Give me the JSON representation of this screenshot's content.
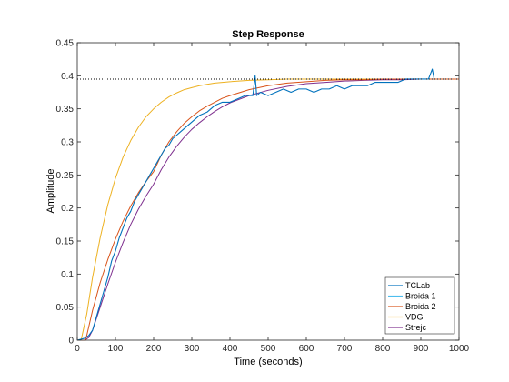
{
  "chart_data": {
    "type": "line",
    "title": "Step Response",
    "xlabel": "Time (seconds)",
    "ylabel": "Amplitude",
    "xlim": [
      0,
      1000
    ],
    "ylim": [
      0,
      0.45
    ],
    "xticks": [
      0,
      100,
      200,
      300,
      400,
      500,
      600,
      700,
      800,
      900,
      1000
    ],
    "xtick_labels": [
      "0",
      "100",
      "200",
      "300",
      "400",
      "500",
      "600",
      "700",
      "800",
      "900",
      "1000"
    ],
    "yticks": [
      0,
      0.05,
      0.1,
      0.15,
      0.2,
      0.25,
      0.3,
      0.35,
      0.4,
      0.45
    ],
    "ytick_labels": [
      "0",
      "0.05",
      "0.1",
      "0.15",
      "0.2",
      "0.25",
      "0.3",
      "0.35",
      "0.4",
      "0.45"
    ],
    "grid": false,
    "legend_position": "bottom-right",
    "reference_line": {
      "y": 0.395,
      "style": "dotted"
    },
    "series": [
      {
        "name": "TCLab",
        "color": "#0072BD",
        "x": [
          0,
          20,
          30,
          40,
          50,
          60,
          70,
          80,
          90,
          100,
          110,
          120,
          130,
          140,
          150,
          160,
          170,
          180,
          190,
          200,
          210,
          220,
          230,
          240,
          250,
          260,
          270,
          280,
          290,
          300,
          320,
          340,
          360,
          380,
          400,
          420,
          440,
          460,
          466,
          470,
          480,
          500,
          520,
          540,
          560,
          580,
          600,
          620,
          640,
          660,
          680,
          700,
          720,
          740,
          760,
          780,
          800,
          820,
          840,
          860,
          880,
          900,
          920,
          930,
          935
        ],
        "y": [
          0,
          0.003,
          0.007,
          0.015,
          0.035,
          0.055,
          0.075,
          0.095,
          0.12,
          0.135,
          0.155,
          0.17,
          0.185,
          0.195,
          0.21,
          0.22,
          0.23,
          0.24,
          0.25,
          0.26,
          0.27,
          0.28,
          0.29,
          0.295,
          0.305,
          0.31,
          0.315,
          0.32,
          0.325,
          0.33,
          0.34,
          0.345,
          0.355,
          0.36,
          0.36,
          0.365,
          0.37,
          0.37,
          0.4,
          0.37,
          0.375,
          0.37,
          0.375,
          0.38,
          0.375,
          0.38,
          0.38,
          0.375,
          0.38,
          0.38,
          0.385,
          0.38,
          0.385,
          0.385,
          0.385,
          0.39,
          0.39,
          0.39,
          0.39,
          0.395,
          0.395,
          0.395,
          0.395,
          0.41,
          0.395
        ]
      },
      {
        "name": "Broida 1",
        "color": "#4DBEEE",
        "x": [],
        "y": []
      },
      {
        "name": "Broida 2",
        "color": "#D95319",
        "x": [
          0,
          22,
          40,
          60,
          80,
          100,
          120,
          140,
          160,
          180,
          200,
          220,
          240,
          260,
          280,
          300,
          320,
          340,
          360,
          380,
          400,
          450,
          500,
          550,
          600,
          650,
          700,
          750,
          800,
          850,
          900,
          950,
          1000
        ],
        "y": [
          0,
          0,
          0.045,
          0.087,
          0.122,
          0.153,
          0.18,
          0.203,
          0.223,
          0.24,
          0.255,
          0.28,
          0.3,
          0.315,
          0.328,
          0.338,
          0.347,
          0.354,
          0.36,
          0.366,
          0.37,
          0.379,
          0.385,
          0.389,
          0.391,
          0.393,
          0.394,
          0.394,
          0.395,
          0.395,
          0.395,
          0.395,
          0.395
        ]
      },
      {
        "name": "VDG",
        "color": "#EDB120",
        "x": [
          0,
          10,
          25,
          40,
          60,
          80,
          100,
          120,
          140,
          160,
          180,
          200,
          220,
          240,
          260,
          280,
          300,
          320,
          340,
          360,
          380,
          400,
          450,
          500,
          550,
          600,
          700,
          800,
          900,
          1000
        ],
        "y": [
          0,
          0,
          0.04,
          0.095,
          0.155,
          0.205,
          0.245,
          0.277,
          0.302,
          0.322,
          0.338,
          0.35,
          0.36,
          0.368,
          0.374,
          0.379,
          0.382,
          0.385,
          0.387,
          0.389,
          0.39,
          0.391,
          0.393,
          0.394,
          0.395,
          0.395,
          0.395,
          0.395,
          0.395,
          0.395
        ]
      },
      {
        "name": "Strejc",
        "color": "#7E2F8E",
        "x": [
          0,
          20,
          30,
          40,
          60,
          80,
          100,
          120,
          140,
          160,
          180,
          200,
          220,
          240,
          260,
          280,
          300,
          320,
          340,
          360,
          380,
          400,
          450,
          500,
          550,
          600,
          650,
          700,
          750,
          800,
          850,
          900,
          1000
        ],
        "y": [
          0,
          0,
          0.004,
          0.015,
          0.05,
          0.085,
          0.118,
          0.148,
          0.175,
          0.198,
          0.218,
          0.236,
          0.258,
          0.277,
          0.293,
          0.307,
          0.319,
          0.329,
          0.338,
          0.346,
          0.353,
          0.359,
          0.37,
          0.378,
          0.384,
          0.388,
          0.39,
          0.392,
          0.393,
          0.394,
          0.394,
          0.395,
          0.395
        ]
      }
    ]
  }
}
